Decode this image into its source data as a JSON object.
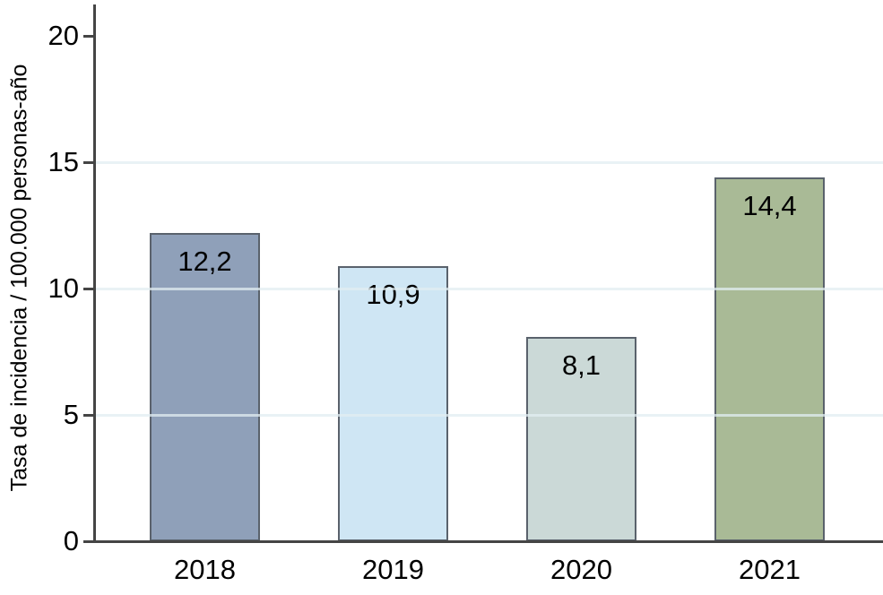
{
  "chart_data": {
    "type": "bar",
    "categories": [
      "2018",
      "2019",
      "2020",
      "2021"
    ],
    "values": [
      12.2,
      10.9,
      8.1,
      14.4
    ],
    "value_labels": [
      "12,2",
      "10,9",
      "8,1",
      "14,4"
    ],
    "title": "",
    "xlabel": "",
    "ylabel": "Tasa de incidencia / 100.000 personas-año",
    "ylim": [
      0,
      20
    ],
    "yticks": [
      0,
      5,
      10,
      15,
      20
    ],
    "ytick_labels": [
      "0",
      "5",
      "10",
      "15",
      "20"
    ],
    "gridline_values": [
      5,
      10,
      15
    ],
    "grid": "horizontal",
    "legend_position": "none",
    "bar_colors": [
      "#8fa0b9",
      "#cfe6f4",
      "#cbd9d7",
      "#a9ba96"
    ],
    "bar_border_color": "#5a626c",
    "axis_color": "#454545",
    "gridline_color": "#e1edf2",
    "background_color": "#ffffff",
    "value_label_color": "#000000"
  }
}
